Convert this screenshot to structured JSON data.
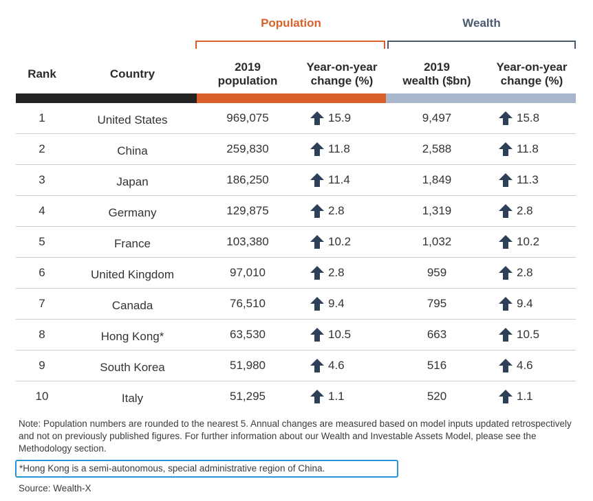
{
  "groups": {
    "population": "Population",
    "wealth": "Wealth"
  },
  "headers": {
    "rank": "Rank",
    "country": "Country",
    "pop_line1": "2019",
    "pop_line2": "population",
    "popchg_line1": "Year-on-year",
    "popchg_line2": "change (%)",
    "wealth_line1": "2019",
    "wealth_line2": "wealth ($bn)",
    "wchg_line1": "Year-on-year",
    "wchg_line2": "change (%)"
  },
  "colors": {
    "population": "#d9602a",
    "wealth": "#4a5a6e",
    "arrow": "#2e4057",
    "footnote_border": "#2a95d6"
  },
  "icons": {
    "change": "arrow-up-icon"
  },
  "rows": [
    {
      "rank": "1",
      "country": "United States",
      "population": "969,075",
      "pop_change": "15.9",
      "wealth": "9,497",
      "wealth_change": "15.8"
    },
    {
      "rank": "2",
      "country": "China",
      "population": "259,830",
      "pop_change": "11.8",
      "wealth": "2,588",
      "wealth_change": "11.8"
    },
    {
      "rank": "3",
      "country": "Japan",
      "population": "186,250",
      "pop_change": "11.4",
      "wealth": "1,849",
      "wealth_change": "11.3"
    },
    {
      "rank": "4",
      "country": "Germany",
      "population": "129,875",
      "pop_change": "2.8",
      "wealth": "1,319",
      "wealth_change": "2.8"
    },
    {
      "rank": "5",
      "country": "France",
      "population": "103,380",
      "pop_change": "10.2",
      "wealth": "1,032",
      "wealth_change": "10.2"
    },
    {
      "rank": "6",
      "country": "United Kingdom",
      "population": "97,010",
      "pop_change": "2.8",
      "wealth": "959",
      "wealth_change": "2.8"
    },
    {
      "rank": "7",
      "country": "Canada",
      "population": "76,510",
      "pop_change": "9.4",
      "wealth": "795",
      "wealth_change": "9.4"
    },
    {
      "rank": "8",
      "country": "Hong Kong*",
      "population": "63,530",
      "pop_change": "10.5",
      "wealth": "663",
      "wealth_change": "10.5"
    },
    {
      "rank": "9",
      "country": "South Korea",
      "population": "51,980",
      "pop_change": "4.6",
      "wealth": "516",
      "wealth_change": "4.6"
    },
    {
      "rank": "10",
      "country": "Italy",
      "population": "51,295",
      "pop_change": "1.1",
      "wealth": "520",
      "wealth_change": "1.1"
    }
  ],
  "note": "Note: Population numbers are rounded to the nearest 5. Annual changes are measured based on model inputs updated retrospectively and not on previously published figures. For further information about our Wealth and Investable Assets Model, please see the Methodology section.",
  "footnote": "*Hong Kong is a semi-autonomous, special administrative region of China.",
  "source": "Source: Wealth-X"
}
